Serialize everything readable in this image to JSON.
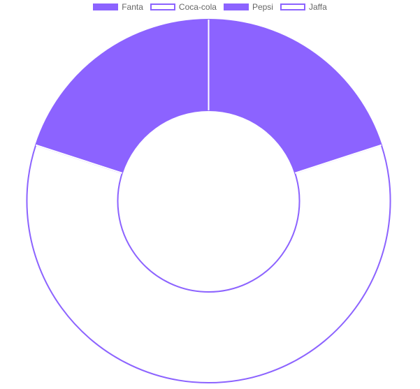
{
  "chart_data": {
    "type": "doughnut",
    "categories": [
      "Fanta",
      "Coca-cola",
      "Pepsi",
      "Jaffa"
    ],
    "values": [
      10,
      30,
      10,
      0
    ],
    "fill_colors": [
      "#8c63ff",
      "#ffffff",
      "#8c63ff",
      "#ffffff"
    ],
    "border_color": "#8c63ff",
    "legend_position": "top",
    "cutout_percent": 50
  }
}
